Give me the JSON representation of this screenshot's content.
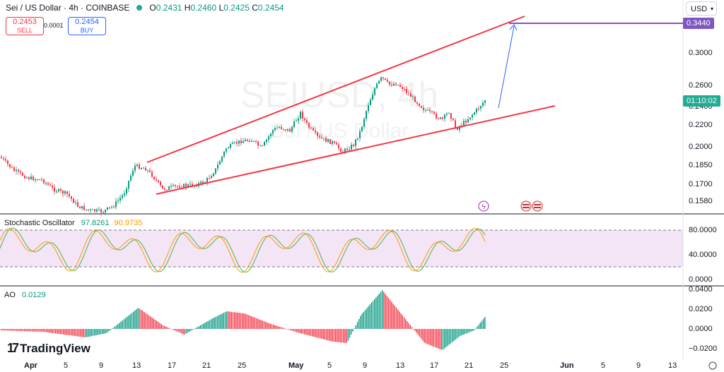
{
  "header": {
    "symbol": "Sei / US Dollar · 4h · COINBASE",
    "ohlc": {
      "o_label": "O",
      "o": "0.2431",
      "h_label": "H",
      "h": "0.2460",
      "l_label": "L",
      "l": "0.2425",
      "c_label": "C",
      "c": "0.2454"
    },
    "sell_price": "0.2453",
    "sell_label": "SELL",
    "spread": "0.0001",
    "buy_price": "0.2454",
    "buy_label": "BUY"
  },
  "watermark": {
    "line1": "SEIUSD, 4h",
    "line2": "Sei / US Dollar"
  },
  "currency": "USD",
  "price_axis": {
    "ticks": [
      "0.3000",
      "0.2600",
      "0.2400",
      "0.2200",
      "0.2000",
      "0.1850",
      "0.1700",
      "0.1580"
    ],
    "target_label": "0.3440",
    "countdown_label": "01:10:02"
  },
  "stochastic": {
    "name": "Stochastic Oscillator",
    "k": "97.8261",
    "d": "90.9735",
    "ticks": [
      "80.0000",
      "40.0000",
      "0.0000"
    ]
  },
  "ao": {
    "name": "AO",
    "value": "0.0129",
    "ticks": [
      "0.0400",
      "0.0200",
      "0.0000",
      "−0.0200"
    ]
  },
  "time_axis": [
    "Apr",
    "5",
    "9",
    "13",
    "17",
    "21",
    "25",
    "May",
    "5",
    "9",
    "13",
    "17",
    "21",
    "25",
    "Jun",
    "5",
    "9",
    "13"
  ],
  "branding": {
    "logo": "TradingView"
  },
  "colors": {
    "up": "#089981",
    "down": "#f23645",
    "channel": "#f23645",
    "target": "#7e57c2",
    "countdown": "#22ab94",
    "projection": "#2962ff"
  }
}
